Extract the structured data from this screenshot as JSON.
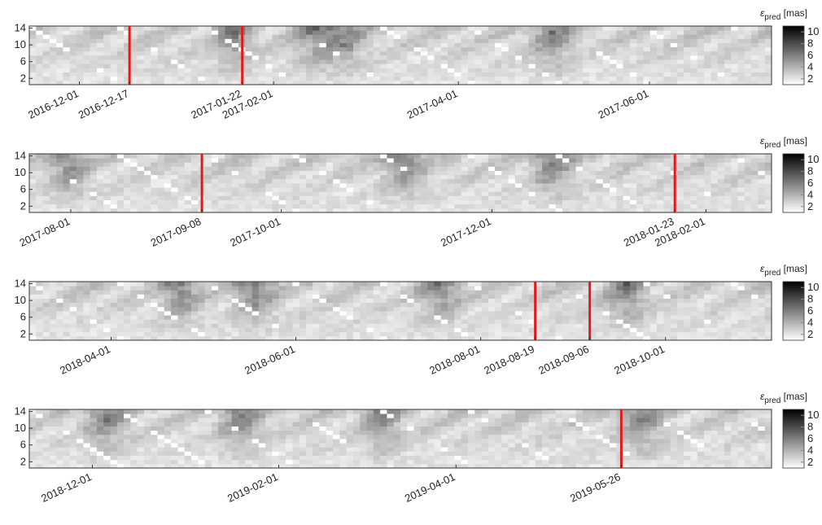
{
  "chart_data": [
    {
      "type": "heatmap",
      "panel": 1,
      "x_range": [
        "2016-11-15",
        "2017-07-10"
      ],
      "xticks": [
        "2016-12-01",
        "2016-12-17",
        "2017-01-22",
        "2017-02-01",
        "2017-04-01",
        "2017-06-01"
      ],
      "red_lines": [
        "2016-12-17",
        "2017-01-22"
      ],
      "yticks": [
        2,
        6,
        10,
        14
      ],
      "ylim": [
        0.5,
        14.5
      ],
      "colorbar": {
        "label_symbol": "ε",
        "label_subscript": "pred",
        "unit": "[mas]",
        "ticks": [
          2,
          4,
          6,
          8,
          10
        ],
        "range": [
          1,
          11
        ],
        "colormap": "white-to-black"
      },
      "seed": 11,
      "dark_bands": [
        0.27,
        0.38,
        0.42,
        0.7
      ]
    },
    {
      "type": "heatmap",
      "panel": 2,
      "x_range": [
        "2017-07-20",
        "2018-02-20"
      ],
      "xticks": [
        "2017-08-01",
        "2017-09-08",
        "2017-10-01",
        "2017-12-01",
        "2018-01-23",
        "2018-02-01"
      ],
      "red_lines": [
        "2017-09-08",
        "2018-01-23"
      ],
      "yticks": [
        2,
        6,
        10,
        14
      ],
      "ylim": [
        0.5,
        14.5
      ],
      "colorbar": {
        "label_symbol": "ε",
        "label_subscript": "pred",
        "unit": "[mas]",
        "ticks": [
          2,
          4,
          6,
          8,
          10
        ],
        "range": [
          1,
          11
        ],
        "colormap": "white-to-black"
      },
      "seed": 23,
      "dark_bands": [
        0.05,
        0.5,
        0.7
      ]
    },
    {
      "type": "heatmap",
      "panel": 3,
      "x_range": [
        "2018-03-05",
        "2018-11-05"
      ],
      "xticks": [
        "2018-04-01",
        "2018-06-01",
        "2018-08-01",
        "2018-08-19",
        "2018-09-06",
        "2018-10-01"
      ],
      "red_lines": [
        "2018-08-19",
        "2018-09-06"
      ],
      "yticks": [
        2,
        6,
        10,
        14
      ],
      "ylim": [
        0.5,
        14.5
      ],
      "colorbar": {
        "label_symbol": "ε",
        "label_subscript": "pred",
        "unit": "[mas]",
        "ticks": [
          2,
          4,
          6,
          8,
          10
        ],
        "range": [
          1,
          11
        ],
        "colormap": "white-to-black"
      },
      "seed": 37,
      "dark_bands": [
        0.2,
        0.3,
        0.55,
        0.8
      ]
    },
    {
      "type": "heatmap",
      "panel": 4,
      "x_range": [
        "2018-11-10",
        "2019-07-15"
      ],
      "xticks": [
        "2018-12-01",
        "2019-02-01",
        "2019-04-01",
        "2019-05-26"
      ],
      "red_lines": [
        "2019-05-26"
      ],
      "yticks": [
        2,
        6,
        10,
        14
      ],
      "ylim": [
        0.5,
        14.5
      ],
      "colorbar": {
        "label_symbol": "ε",
        "label_subscript": "pred",
        "unit": "[mas]",
        "ticks": [
          2,
          4,
          6,
          8,
          10
        ],
        "range": [
          1,
          11
        ],
        "colormap": "white-to-black"
      },
      "seed": 53,
      "dark_bands": [
        0.1,
        0.28,
        0.47,
        0.82
      ]
    }
  ],
  "colors": {
    "red_line": "#e31a1c",
    "axis": "#333333"
  }
}
